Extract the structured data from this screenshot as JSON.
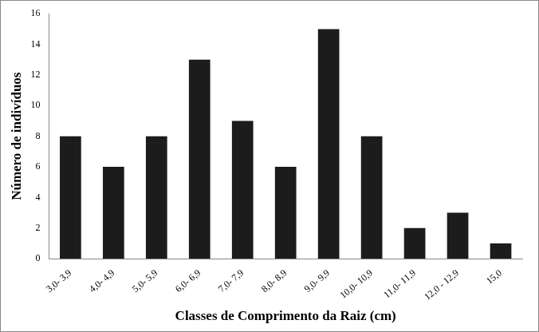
{
  "chart_data": {
    "type": "bar",
    "categories": [
      "3,0- 3,9",
      "4,0- 4,9",
      "5,0- 5,9",
      "6,0- 6,9",
      "7,0- 7,9",
      "8,0- 8,9",
      "9,0- 9,9",
      "10,0- 10,9",
      "11,0- 11,9",
      "12,0 - 12,9",
      "15,0"
    ],
    "values": [
      8,
      6,
      8,
      13,
      9,
      6,
      15,
      8,
      2,
      3,
      1
    ],
    "color": "#1c1c1c",
    "x_label": "Classes de Comprimento da Raiz (cm)",
    "y_label": "Número de indivíduos",
    "ylim": [
      0,
      16
    ],
    "yticks": [
      0,
      2,
      4,
      6,
      8,
      10,
      12,
      14,
      16
    ],
    "grid": false
  }
}
